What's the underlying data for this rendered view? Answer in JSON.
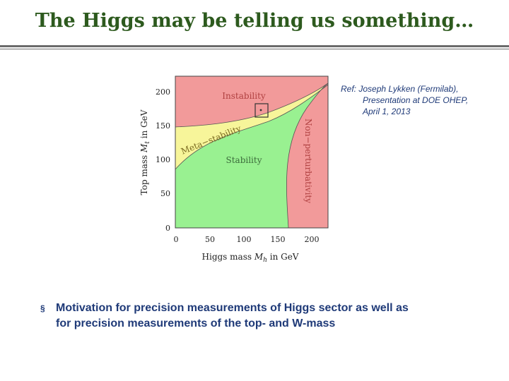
{
  "slide": {
    "title": "The Higgs may be telling us something…",
    "reference": {
      "line1": "Ref: Joseph Lykken (Fermilab),",
      "line2": "Presentation at DOE OHEP,",
      "line3": "April 1, 2013"
    },
    "bullet": {
      "marker": "§",
      "line1": "Motivation for precision measurements of Higgs sector as well as",
      "line2": "for precision measurements of the top- and W-mass"
    }
  },
  "colors": {
    "title": "#2d5a1e",
    "instability": "#f29a9a",
    "metastability": "#f7f59a",
    "stability": "#99f191",
    "nonperturbativity": "#f29a9a",
    "text_blue": "#1f3a78"
  },
  "diagram": {
    "regions": {
      "instability": "Instability",
      "metastability": "Meta−stability",
      "stability": "Stability",
      "nonperturbativity": "Non−perturbativity"
    },
    "x_axis": {
      "label_prefix": "Higgs mass ",
      "label_symbol": "M",
      "label_sub": "h",
      "label_suffix": " in GeV",
      "ticks": [
        "0",
        "50",
        "100",
        "150",
        "200"
      ]
    },
    "y_axis": {
      "label_prefix": "Top mass ",
      "label_symbol": "M",
      "label_sub": "t",
      "label_suffix": " in GeV",
      "ticks": [
        "0",
        "50",
        "100",
        "150",
        "200"
      ]
    },
    "marker_box": {
      "higgs_mass_gev": [
        117,
        134
      ],
      "top_mass_gev": [
        163,
        183
      ]
    }
  }
}
